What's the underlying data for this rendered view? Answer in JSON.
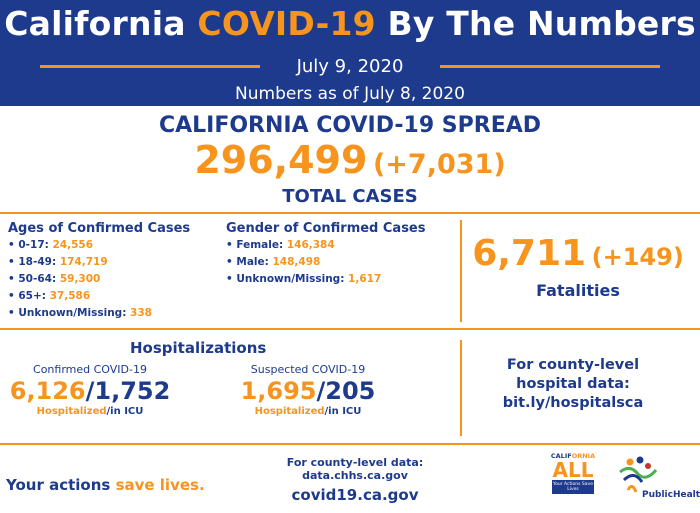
{
  "header": {
    "title_prefix": "California",
    "title_highlight": "COVID-19",
    "title_suffix": "By The Numbers",
    "date": "July 9, 2020",
    "as_of": "Numbers as of July 8, 2020"
  },
  "spread": {
    "heading": "CALIFORNIA COVID-19 SPREAD",
    "total": "296,499",
    "total_change": "(+7,031)",
    "total_label": "TOTAL CASES"
  },
  "ages": {
    "title": "Ages of Confirmed Cases",
    "items": [
      {
        "label": "• 0-17:",
        "value": "24,556"
      },
      {
        "label": "• 18-49:",
        "value": "174,719"
      },
      {
        "label": "• 50-64:",
        "value": "59,300"
      },
      {
        "label": "• 65+:",
        "value": "37,586"
      },
      {
        "label": "• Unknown/Missing:",
        "value": "338"
      }
    ]
  },
  "gender": {
    "title": "Gender of Confirmed Cases",
    "items": [
      {
        "label": "• Female:",
        "value": "146,384"
      },
      {
        "label": "• Male:",
        "value": "148,498"
      },
      {
        "label": "• Unknown/Missing:",
        "value": "1,617"
      }
    ]
  },
  "fatalities": {
    "count": "6,711",
    "change": "(+149)",
    "label": "Fatalities"
  },
  "hospitalizations": {
    "title": "Hospitalizations",
    "confirmed": {
      "label": "Confirmed COVID-19",
      "hospitalized": "6,126",
      "icu": "1,752",
      "sub_hosp": "Hospitalized",
      "sub_icu": "/in ICU"
    },
    "suspected": {
      "label": "Suspected COVID-19",
      "hospitalized": "1,695",
      "icu": "205",
      "sub_hosp": "Hospitalized",
      "sub_icu": "/in ICU"
    },
    "county": {
      "line1": "For county-level",
      "line2": "hospital data:",
      "line3": "bit.ly/hospitalsca"
    }
  },
  "footer": {
    "slogan_a": "Your actions",
    "slogan_b": "save lives.",
    "data_line1": "For county-level data:",
    "data_line2": "data.chhs.ca.gov",
    "site": "covid19.ca.gov",
    "ca_all_top_a": "CALIF",
    "ca_all_top_b": "ORNIA",
    "ca_all_word": "ALL",
    "ca_all_box": "Your Actions Save Lives",
    "cdph_name": "PublicHealth"
  },
  "colors": {
    "brand_blue": "#1d3a8c",
    "accent_orange": "#f7941d"
  }
}
